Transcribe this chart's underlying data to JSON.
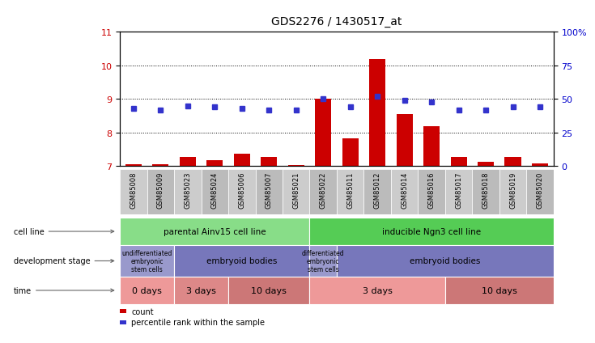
{
  "title": "GDS2276 / 1430517_at",
  "samples": [
    "GSM85008",
    "GSM85009",
    "GSM85023",
    "GSM85024",
    "GSM85006",
    "GSM85007",
    "GSM85021",
    "GSM85022",
    "GSM85011",
    "GSM85012",
    "GSM85014",
    "GSM85016",
    "GSM85017",
    "GSM85018",
    "GSM85019",
    "GSM85020"
  ],
  "counts": [
    7.05,
    7.05,
    7.28,
    7.18,
    7.38,
    7.28,
    7.03,
    9.0,
    7.82,
    10.2,
    8.55,
    8.18,
    7.27,
    7.13,
    7.28,
    7.08
  ],
  "percentile": [
    43.0,
    42.0,
    45.0,
    44.0,
    43.0,
    42.0,
    42.0,
    50.0,
    44.0,
    52.0,
    49.0,
    48.0,
    42.0,
    42.0,
    44.0,
    44.0
  ],
  "ylim_left": [
    7,
    11
  ],
  "ylim_right": [
    0,
    100
  ],
  "yticks_left": [
    7,
    8,
    9,
    10,
    11
  ],
  "yticks_right": [
    0,
    25,
    50,
    75,
    100
  ],
  "bar_color": "#cc0000",
  "dot_color": "#3333cc",
  "cell_line_groups": [
    {
      "label": "parental Ainv15 cell line",
      "start": 0,
      "end": 7,
      "color": "#88dd88"
    },
    {
      "label": "inducible Ngn3 cell line",
      "start": 7,
      "end": 16,
      "color": "#55cc55"
    }
  ],
  "dev_stage_groups": [
    {
      "label": "undifferentiated\nembryonic\nstem cells",
      "start": 0,
      "end": 2,
      "color": "#9999cc",
      "fontsize": 5.5
    },
    {
      "label": "embryoid bodies",
      "start": 2,
      "end": 7,
      "color": "#7777bb",
      "fontsize": 7.5
    },
    {
      "label": "differentiated\nembryonic\nstem cells",
      "start": 7,
      "end": 8,
      "color": "#9999cc",
      "fontsize": 5.5
    },
    {
      "label": "embryoid bodies",
      "start": 8,
      "end": 16,
      "color": "#7777bb",
      "fontsize": 7.5
    }
  ],
  "time_groups": [
    {
      "label": "0 days",
      "start": 0,
      "end": 2,
      "color": "#ee9999"
    },
    {
      "label": "3 days",
      "start": 2,
      "end": 4,
      "color": "#dd8888"
    },
    {
      "label": "10 days",
      "start": 4,
      "end": 7,
      "color": "#cc7777"
    },
    {
      "label": "3 days",
      "start": 7,
      "end": 12,
      "color": "#ee9999"
    },
    {
      "label": "10 days",
      "start": 12,
      "end": 16,
      "color": "#cc7777"
    }
  ],
  "right_axis_color": "#0000cc",
  "left_axis_color": "#cc0000",
  "legend_count_color": "#cc0000",
  "legend_pct_color": "#3333cc"
}
